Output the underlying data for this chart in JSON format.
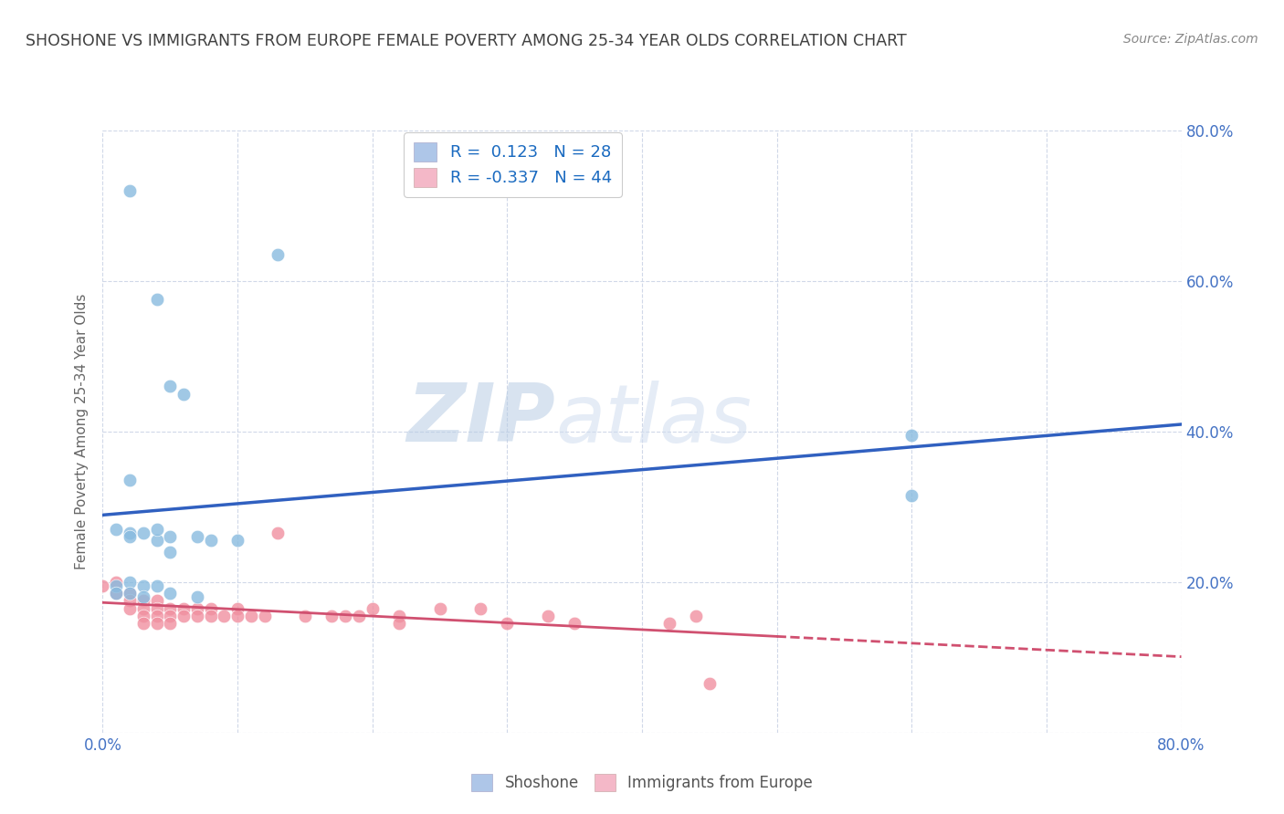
{
  "title": "SHOSHONE VS IMMIGRANTS FROM EUROPE FEMALE POVERTY AMONG 25-34 YEAR OLDS CORRELATION CHART",
  "source": "Source: ZipAtlas.com",
  "ylabel": "Female Poverty Among 25-34 Year Olds",
  "xlim": [
    0,
    0.8
  ],
  "ylim": [
    0,
    0.8
  ],
  "xticks": [
    0.0,
    0.1,
    0.2,
    0.3,
    0.4,
    0.5,
    0.6,
    0.7,
    0.8
  ],
  "yticks": [
    0.0,
    0.2,
    0.4,
    0.6,
    0.8
  ],
  "shoshone_color": "#88bbdf",
  "europe_color": "#f090a0",
  "shoshone_scatter": [
    [
      0.02,
      0.72
    ],
    [
      0.13,
      0.635
    ],
    [
      0.04,
      0.575
    ],
    [
      0.05,
      0.46
    ],
    [
      0.06,
      0.45
    ],
    [
      0.02,
      0.335
    ],
    [
      0.04,
      0.255
    ],
    [
      0.05,
      0.24
    ],
    [
      0.02,
      0.265
    ],
    [
      0.04,
      0.27
    ],
    [
      0.01,
      0.195
    ],
    [
      0.01,
      0.27
    ],
    [
      0.02,
      0.26
    ],
    [
      0.03,
      0.265
    ],
    [
      0.05,
      0.26
    ],
    [
      0.07,
      0.26
    ],
    [
      0.08,
      0.255
    ],
    [
      0.1,
      0.255
    ],
    [
      0.02,
      0.2
    ],
    [
      0.03,
      0.195
    ],
    [
      0.04,
      0.195
    ],
    [
      0.01,
      0.185
    ],
    [
      0.02,
      0.185
    ],
    [
      0.03,
      0.18
    ],
    [
      0.05,
      0.185
    ],
    [
      0.07,
      0.18
    ],
    [
      0.6,
      0.395
    ],
    [
      0.6,
      0.315
    ]
  ],
  "europe_scatter": [
    [
      0.0,
      0.195
    ],
    [
      0.01,
      0.2
    ],
    [
      0.01,
      0.185
    ],
    [
      0.02,
      0.185
    ],
    [
      0.02,
      0.175
    ],
    [
      0.02,
      0.165
    ],
    [
      0.03,
      0.175
    ],
    [
      0.03,
      0.165
    ],
    [
      0.03,
      0.155
    ],
    [
      0.03,
      0.145
    ],
    [
      0.04,
      0.175
    ],
    [
      0.04,
      0.165
    ],
    [
      0.04,
      0.155
    ],
    [
      0.04,
      0.145
    ],
    [
      0.05,
      0.165
    ],
    [
      0.05,
      0.155
    ],
    [
      0.05,
      0.145
    ],
    [
      0.06,
      0.165
    ],
    [
      0.06,
      0.155
    ],
    [
      0.07,
      0.165
    ],
    [
      0.07,
      0.155
    ],
    [
      0.08,
      0.165
    ],
    [
      0.08,
      0.155
    ],
    [
      0.09,
      0.155
    ],
    [
      0.1,
      0.165
    ],
    [
      0.1,
      0.155
    ],
    [
      0.11,
      0.155
    ],
    [
      0.12,
      0.155
    ],
    [
      0.13,
      0.265
    ],
    [
      0.15,
      0.155
    ],
    [
      0.17,
      0.155
    ],
    [
      0.18,
      0.155
    ],
    [
      0.19,
      0.155
    ],
    [
      0.2,
      0.165
    ],
    [
      0.22,
      0.155
    ],
    [
      0.22,
      0.145
    ],
    [
      0.25,
      0.165
    ],
    [
      0.28,
      0.165
    ],
    [
      0.3,
      0.145
    ],
    [
      0.33,
      0.155
    ],
    [
      0.35,
      0.145
    ],
    [
      0.42,
      0.145
    ],
    [
      0.44,
      0.155
    ],
    [
      0.45,
      0.065
    ]
  ],
  "watermark_zip": "ZIP",
  "watermark_atlas": "atlas",
  "background_color": "#ffffff",
  "grid_color": "#d0d8e8",
  "shoshone_line_color": "#3060c0",
  "europe_line_color": "#d05070",
  "title_color": "#404040",
  "tick_label_color": "#4472c4",
  "source_color": "#888888",
  "ylabel_color": "#666666",
  "legend1_label1": "R =  0.123   N = 28",
  "legend1_label2": "R = -0.337   N = 44",
  "legend2_label1": "Shoshone",
  "legend2_label2": "Immigrants from Europe",
  "legend_patch_blue": "#aec6e8",
  "legend_patch_pink": "#f4b8c8",
  "legend_text_color": "#1a6ac0"
}
